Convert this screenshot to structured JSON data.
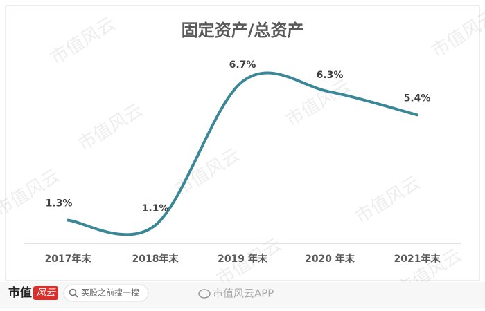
{
  "chart_data": {
    "type": "line",
    "title": "固定资产/总资产",
    "categories": [
      "2017年末",
      "2018年末",
      "2019 年末",
      "2020 年末",
      "2021年末"
    ],
    "values": [
      1.3,
      1.1,
      6.7,
      6.3,
      5.4
    ],
    "value_labels": [
      "1.3%",
      "1.1%",
      "6.7%",
      "6.3%",
      "5.4%"
    ],
    "color": "#3a8797"
  },
  "watermark": "市值风云",
  "footer": {
    "logo_left": "市值",
    "logo_right": "风云",
    "search": "买股之前搜一搜",
    "app": "市值风云APP"
  }
}
